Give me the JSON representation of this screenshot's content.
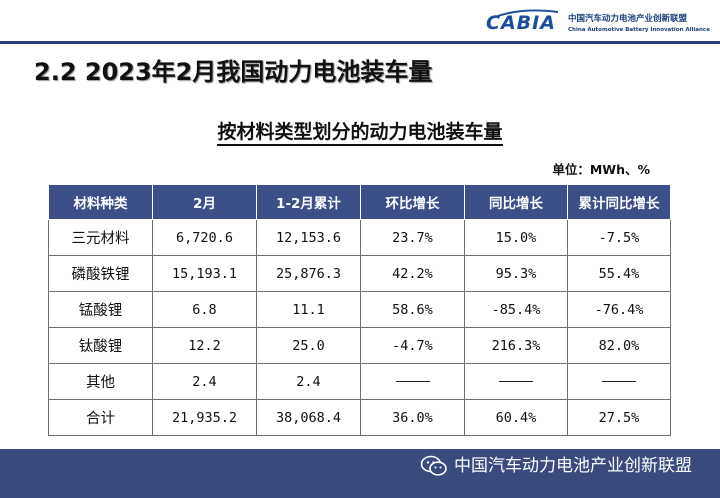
{
  "header": {
    "logo_text": "CABIA",
    "org_cn": "中国汽车动力电池产业创新联盟",
    "org_en": "China Automotive Battery Innovation Alliance"
  },
  "slide": {
    "title": "2.2 2023年2月我国动力电池装车量",
    "subtitle": "按材料类型划分的动力电池装车量",
    "unit": "单位：MWh、%"
  },
  "table": {
    "headers": [
      "材料种类",
      "2月",
      "1-2月累计",
      "环比增长",
      "同比增长",
      "累计同比增长"
    ],
    "rows": [
      [
        "三元材料",
        "6,720.6",
        "12,153.6",
        "23.7%",
        "15.0%",
        "-7.5%"
      ],
      [
        "磷酸铁锂",
        "15,193.1",
        "25,876.3",
        "42.2%",
        "95.3%",
        "55.4%"
      ],
      [
        "锰酸锂",
        "6.8",
        "11.1",
        "58.6%",
        "-85.4%",
        "-76.4%"
      ],
      [
        "钛酸锂",
        "12.2",
        "25.0",
        "-4.7%",
        "216.3%",
        "82.0%"
      ],
      [
        "其他",
        "2.4",
        "2.4",
        "",
        "",
        ""
      ],
      [
        "合计",
        "21,935.2",
        "38,068.4",
        "36.0%",
        "60.4%",
        "27.5%"
      ]
    ]
  },
  "footer": {
    "brand": "中国汽车动力电池产业创新联盟",
    "icon": "wechat-icon"
  },
  "colors": {
    "header_fill": "#3c4f88",
    "footer_fill": "#3a4a7e",
    "rule": "#2b3a78"
  }
}
